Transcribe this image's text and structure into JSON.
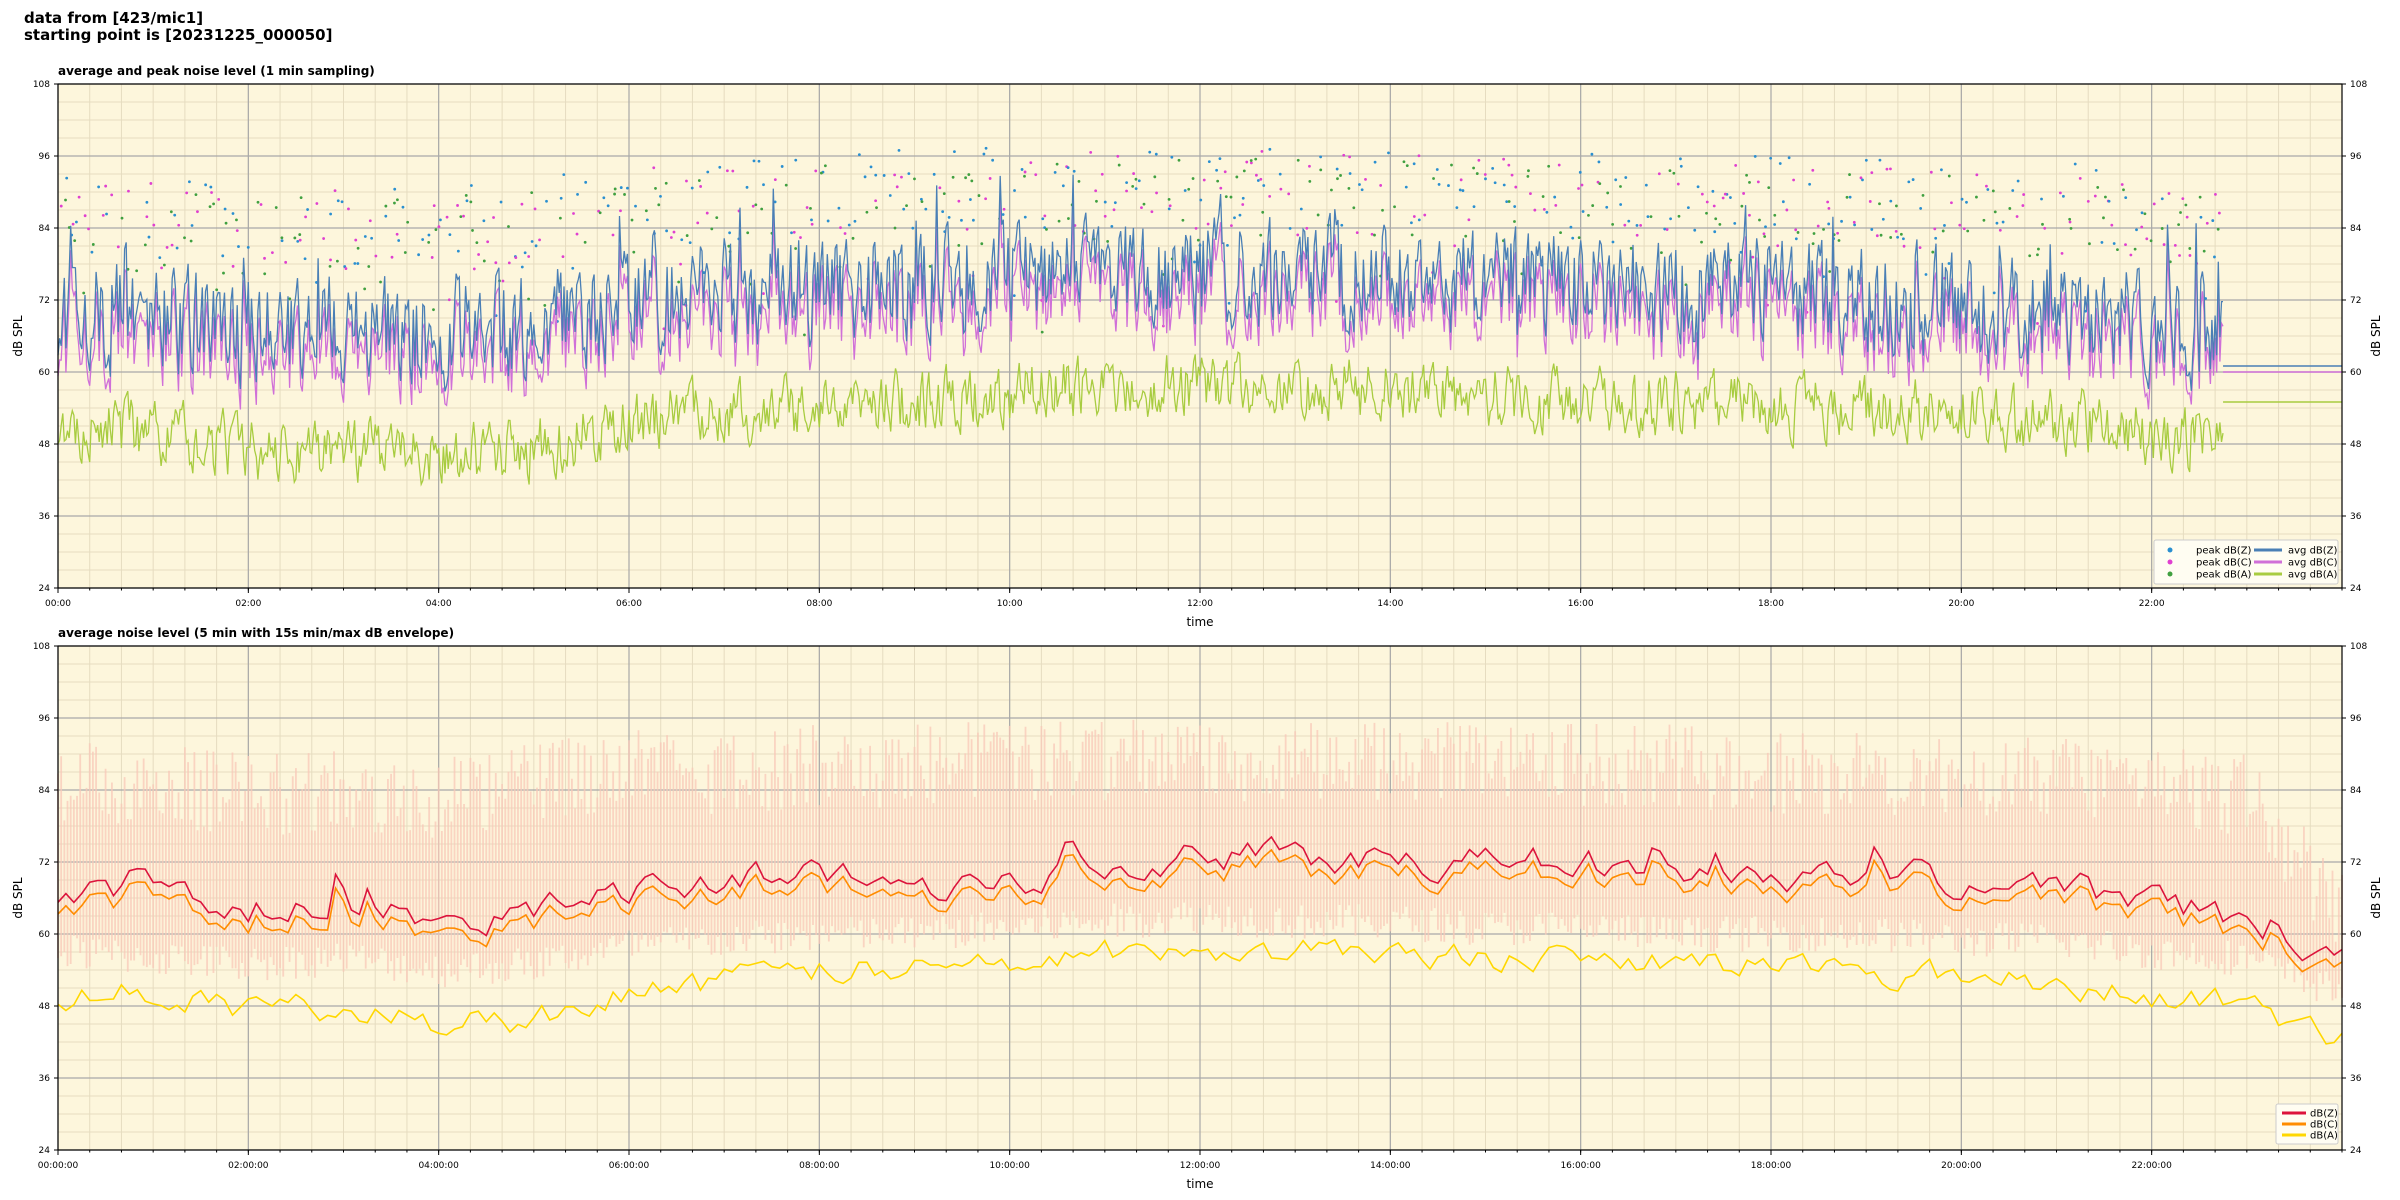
{
  "header": {
    "line1": "data from [423/mic1]",
    "line2": "starting point is [20231225_000050]"
  },
  "colors": {
    "plot_bg": "#fdf6dc",
    "grid_major": "#a8a8a8",
    "grid_minor": "#e6dcc0",
    "avg_z": "#4a7fb5",
    "avg_c": "#d070d8",
    "avg_a": "#a8cc40",
    "peak_z": "#2a8fd0",
    "peak_c": "#e040d0",
    "peak_a": "#40a040",
    "band": "#f8c8b8",
    "env_z": "#dc143c",
    "env_c": "#ff8c00",
    "env_a": "#ffd700"
  },
  "chart_data": [
    {
      "type": "line",
      "title": "average and peak noise level (1 min sampling)",
      "xlabel": "time",
      "ylabel": "dB SPL",
      "ylim": [
        24,
        108
      ],
      "yticks": [
        "24",
        "36",
        "48",
        "60",
        "72",
        "84",
        "96",
        "108"
      ],
      "xlim_hours": [
        0,
        24
      ],
      "xticks": [
        "00:00",
        "02:00",
        "04:00",
        "06:00",
        "08:00",
        "10:00",
        "12:00",
        "14:00",
        "16:00",
        "18:00",
        "20:00",
        "22:00"
      ],
      "grid": true,
      "legend_position": "bottom-right",
      "legend": [
        {
          "label": "peak dB(Z)",
          "kind": "dot",
          "color": "peak_z"
        },
        {
          "label": "peak dB(C)",
          "kind": "dot",
          "color": "peak_c"
        },
        {
          "label": "peak dB(A)",
          "kind": "dot",
          "color": "peak_a"
        },
        {
          "label": "avg dB(Z)",
          "kind": "line",
          "color": "avg_z"
        },
        {
          "label": "avg dB(C)",
          "kind": "line",
          "color": "avg_c"
        },
        {
          "label": "avg dB(A)",
          "kind": "line",
          "color": "avg_a"
        }
      ],
      "series_trend": {
        "x_hours": [
          0,
          1,
          2,
          3,
          4,
          5,
          6,
          7,
          8,
          9,
          10,
          11,
          12,
          13,
          14,
          15,
          16,
          17,
          18,
          19,
          20,
          21,
          22,
          22.75
        ],
        "avg_z": [
          70,
          69,
          67,
          68,
          67,
          68,
          72,
          73,
          74,
          74,
          75,
          76,
          77,
          76,
          76,
          75,
          74,
          73,
          73,
          72,
          71,
          70,
          68,
          66
        ],
        "avg_c": [
          67,
          66,
          64,
          65,
          64,
          65,
          69,
          70,
          71,
          71,
          72,
          73,
          74,
          73,
          73,
          72,
          71,
          70,
          70,
          69,
          68,
          67,
          65,
          63
        ],
        "avg_a": [
          51,
          50,
          47,
          47,
          46,
          47,
          52,
          53,
          54,
          55,
          56,
          58,
          58,
          57,
          57,
          56,
          55,
          55,
          54,
          54,
          53,
          52,
          50,
          48
        ],
        "peak_z": [
          87,
          86,
          85,
          85,
          85,
          86,
          89,
          89,
          90,
          90,
          91,
          91,
          91,
          91,
          91,
          90,
          90,
          89,
          89,
          89,
          88,
          88,
          86,
          85
        ]
      },
      "flat_tail": {
        "x_hours": [
          22.75,
          24
        ],
        "avg_z": 61,
        "avg_c": 60,
        "avg_a": 55
      }
    },
    {
      "type": "line",
      "title": "average noise level (5 min with 15s min/max dB envelope)",
      "xlabel": "time",
      "ylabel": "dB SPL",
      "ylim": [
        24,
        108
      ],
      "yticks": [
        "24",
        "36",
        "48",
        "60",
        "72",
        "84",
        "96",
        "108"
      ],
      "xlim_hours": [
        0,
        24
      ],
      "xticks": [
        "00:00:00",
        "02:00:00",
        "04:00:00",
        "06:00:00",
        "08:00:00",
        "10:00:00",
        "12:00:00",
        "14:00:00",
        "16:00:00",
        "18:00:00",
        "20:00:00",
        "22:00:00"
      ],
      "grid": true,
      "legend_position": "bottom-right",
      "legend": [
        {
          "label": "dB(Z)",
          "kind": "line",
          "color": "env_z"
        },
        {
          "label": "dB(C)",
          "kind": "line",
          "color": "env_c"
        },
        {
          "label": "dB(A)",
          "kind": "line",
          "color": "env_a"
        }
      ],
      "series_trend": {
        "x_hours": [
          0,
          1,
          2,
          3,
          4,
          5,
          6,
          7,
          8,
          9,
          10,
          11,
          12,
          13,
          14,
          15,
          16,
          17,
          18,
          19,
          20,
          21,
          22,
          23,
          24
        ],
        "z": [
          66,
          67,
          64,
          64,
          62,
          63,
          68,
          69,
          70,
          68,
          69,
          72,
          73,
          73,
          73,
          72,
          72,
          71,
          70,
          70,
          69,
          68,
          65,
          62,
          56
        ],
        "c": [
          64,
          65,
          62,
          62,
          60,
          61,
          66,
          67,
          68,
          66,
          67,
          70,
          71,
          71,
          71,
          70,
          70,
          69,
          68,
          68,
          67,
          66,
          63,
          60,
          54
        ],
        "a": [
          50,
          50,
          47,
          48,
          45,
          46,
          51,
          52,
          54,
          54,
          55,
          57,
          58,
          57,
          57,
          56,
          56,
          55,
          55,
          54,
          53,
          52,
          50,
          48,
          42
        ],
        "band_min": [
          57,
          56,
          55,
          56,
          54,
          55,
          58,
          59,
          60,
          60,
          61,
          62,
          63,
          62,
          62,
          61,
          61,
          60,
          60,
          60,
          59,
          59,
          57,
          56,
          50
        ],
        "band_max": [
          92,
          92,
          90,
          91,
          90,
          92,
          94,
          94,
          95,
          95,
          96,
          96,
          96,
          96,
          96,
          95,
          95,
          95,
          94,
          94,
          93,
          93,
          92,
          90,
          70
        ]
      }
    }
  ]
}
